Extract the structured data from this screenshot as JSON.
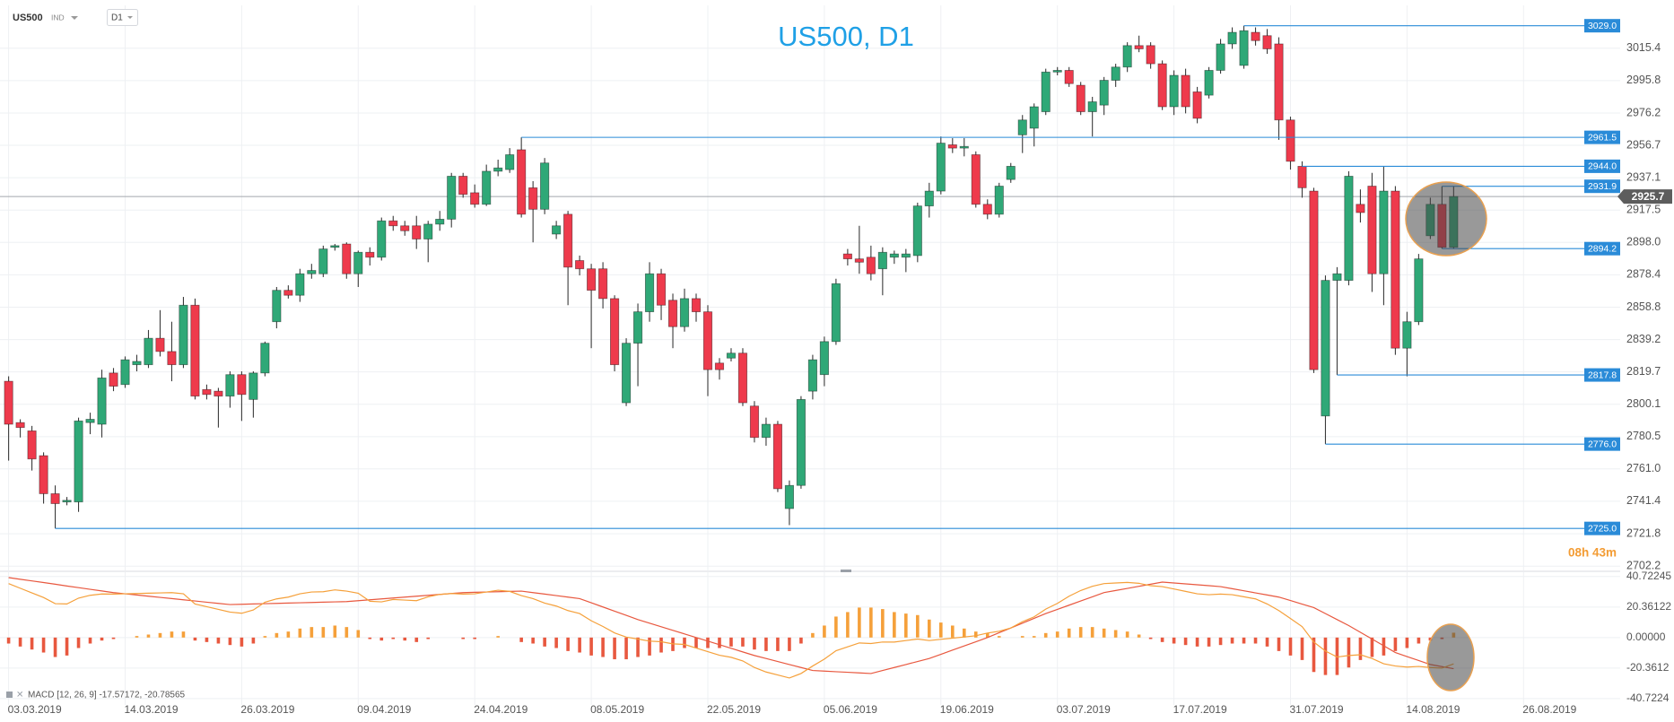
{
  "top_bar": {
    "symbol": "US500",
    "market": "IND",
    "timeframe": "D1"
  },
  "chart_data": [
    {
      "type": "candlestick",
      "title": "US500, D1",
      "categories": [
        "03.03.2019",
        null,
        null,
        null,
        null,
        null,
        null,
        null,
        null,
        null,
        "14.03.2019",
        null,
        null,
        null,
        null,
        null,
        null,
        null,
        null,
        null,
        "26.03.2019",
        null,
        null,
        null,
        null,
        null,
        null,
        null,
        null,
        null,
        "09.04.2019",
        null,
        null,
        null,
        null,
        null,
        null,
        null,
        null,
        null,
        "24.04.2019",
        null,
        null,
        null,
        null,
        null,
        null,
        null,
        null,
        null,
        "08.05.2019",
        null,
        null,
        null,
        null,
        null,
        null,
        null,
        null,
        null,
        "22.05.2019",
        null,
        null,
        null,
        null,
        null,
        null,
        null,
        null,
        null,
        "05.06.2019",
        null,
        null,
        null,
        null,
        null,
        null,
        null,
        null,
        null,
        "19.06.2019",
        null,
        null,
        null,
        null,
        null,
        null,
        null,
        null,
        null,
        "03.07.2019",
        null,
        null,
        null,
        null,
        null,
        null,
        null,
        null,
        null,
        "17.07.2019",
        null,
        null,
        null,
        null,
        null,
        null,
        null,
        null,
        null,
        "31.07.2019",
        null,
        null,
        null,
        null,
        null,
        null,
        null,
        null,
        null,
        "14.08.2019",
        null,
        null,
        null,
        null,
        null,
        null,
        null,
        null,
        null,
        "26.08.2019"
      ],
      "ohlc": [
        [
          2814,
          2817,
          2766,
          2788
        ],
        [
          2789,
          2791,
          2780,
          2786
        ],
        [
          2784,
          2787,
          2760,
          2767
        ],
        [
          2769,
          2771,
          2740,
          2746
        ],
        [
          2746,
          2751,
          2725,
          2740
        ],
        [
          2741,
          2744,
          2739,
          2742
        ],
        [
          2741,
          2792,
          2735,
          2790
        ],
        [
          2789,
          2795,
          2782,
          2791
        ],
        [
          2788,
          2821,
          2780,
          2816
        ],
        [
          2819,
          2822,
          2808,
          2811
        ],
        [
          2812,
          2829,
          2810,
          2827
        ],
        [
          2824,
          2830,
          2820,
          2826
        ],
        [
          2824,
          2845,
          2822,
          2840
        ],
        [
          2840,
          2857,
          2829,
          2832
        ],
        [
          2832,
          2850,
          2814,
          2824
        ],
        [
          2824,
          2865,
          2822,
          2860
        ],
        [
          2860,
          2864,
          2803,
          2805
        ],
        [
          2809,
          2812,
          2803,
          2806
        ],
        [
          2808,
          2810,
          2786,
          2805
        ],
        [
          2805,
          2820,
          2798,
          2818
        ],
        [
          2818,
          2820,
          2790,
          2806
        ],
        [
          2803,
          2820,
          2792,
          2819
        ],
        [
          2819,
          2838,
          2817,
          2837
        ],
        [
          2850,
          2871,
          2846,
          2869
        ],
        [
          2869,
          2872,
          2864,
          2866
        ],
        [
          2866,
          2882,
          2862,
          2879
        ],
        [
          2879,
          2885,
          2876,
          2881
        ],
        [
          2879,
          2896,
          2877,
          2894
        ],
        [
          2895,
          2897,
          2893,
          2896
        ],
        [
          2897,
          2898,
          2876,
          2879
        ],
        [
          2879,
          2893,
          2871,
          2892
        ],
        [
          2892,
          2895,
          2884,
          2889
        ],
        [
          2889,
          2913,
          2887,
          2911
        ],
        [
          2911,
          2914,
          2905,
          2908
        ],
        [
          2908,
          2911,
          2902,
          2905
        ],
        [
          2908,
          2914,
          2894,
          2900
        ],
        [
          2900,
          2911,
          2886,
          2909
        ],
        [
          2909,
          2917,
          2905,
          2912
        ],
        [
          2912,
          2940,
          2907,
          2938
        ],
        [
          2938,
          2940,
          2925,
          2927
        ],
        [
          2928,
          2933,
          2919,
          2921
        ],
        [
          2921,
          2945,
          2920,
          2941
        ],
        [
          2941,
          2948,
          2938,
          2943
        ],
        [
          2942,
          2955,
          2940,
          2951
        ],
        [
          2954,
          2961.5,
          2913,
          2915
        ],
        [
          2931,
          2935,
          2898,
          2918
        ],
        [
          2918,
          2949,
          2915,
          2946
        ],
        [
          2903,
          2911,
          2900,
          2908
        ],
        [
          2915,
          2917,
          2860,
          2883
        ],
        [
          2887,
          2890,
          2878,
          2882
        ],
        [
          2882,
          2885,
          2834,
          2869
        ],
        [
          2882,
          2886,
          2858,
          2864
        ],
        [
          2864,
          2866,
          2820,
          2824
        ],
        [
          2801,
          2840,
          2799,
          2837
        ],
        [
          2837,
          2861,
          2811,
          2856
        ],
        [
          2856,
          2886,
          2850,
          2879
        ],
        [
          2879,
          2882,
          2851,
          2860
        ],
        [
          2863,
          2867,
          2834,
          2847
        ],
        [
          2847,
          2870,
          2844,
          2864
        ],
        [
          2864,
          2867,
          2850,
          2856
        ],
        [
          2856,
          2860,
          2805,
          2821
        ],
        [
          2825,
          2828,
          2815,
          2821
        ],
        [
          2828,
          2834,
          2826,
          2831
        ],
        [
          2831,
          2834,
          2799,
          2801
        ],
        [
          2799,
          2802,
          2777,
          2780
        ],
        [
          2780,
          2792,
          2775,
          2788
        ],
        [
          2788,
          2790,
          2747,
          2749
        ],
        [
          2737,
          2754,
          2727,
          2751
        ],
        [
          2751,
          2805,
          2749,
          2803
        ],
        [
          2808,
          2830,
          2803,
          2827
        ],
        [
          2818,
          2841,
          2811,
          2838
        ],
        [
          2838,
          2876,
          2836,
          2873
        ],
        [
          2891,
          2894,
          2884,
          2888
        ],
        [
          2888,
          2908,
          2879,
          2886
        ],
        [
          2889,
          2896,
          2875,
          2879
        ],
        [
          2882,
          2895,
          2866,
          2892
        ],
        [
          2889,
          2893,
          2885,
          2891
        ],
        [
          2889,
          2894,
          2880,
          2891
        ],
        [
          2890,
          2922,
          2886,
          2920
        ],
        [
          2920,
          2934,
          2913,
          2929
        ],
        [
          2929,
          2962,
          2927,
          2958
        ],
        [
          2957,
          2961,
          2952,
          2955
        ],
        [
          2955,
          2961,
          2950,
          2956
        ],
        [
          2951,
          2953,
          2919,
          2921
        ],
        [
          2921,
          2924,
          2912,
          2915
        ],
        [
          2915,
          2934,
          2913,
          2932
        ],
        [
          2936,
          2946,
          2934,
          2944
        ],
        [
          2963,
          2975,
          2952,
          2972
        ],
        [
          2967,
          2982,
          2956,
          2980
        ],
        [
          2977,
          3003,
          2975,
          3001
        ],
        [
          3001,
          3004,
          2999,
          3002
        ],
        [
          3002,
          3004,
          2992,
          2994
        ],
        [
          2993,
          2995,
          2975,
          2977
        ],
        [
          2977,
          2986,
          2962,
          2983
        ],
        [
          2981,
          2998,
          2975,
          2996
        ],
        [
          2996,
          3006,
          2992,
          3004
        ],
        [
          3004,
          3019,
          3001,
          3017
        ],
        [
          3017,
          3023,
          3013,
          3015
        ],
        [
          3017,
          3019,
          3003,
          3006
        ],
        [
          3006,
          3008,
          2978,
          2980
        ],
        [
          2980,
          3002,
          2975,
          2999
        ],
        [
          2999,
          3003,
          2976,
          2980
        ],
        [
          2989,
          2992,
          2970,
          2973
        ],
        [
          2987,
          3004,
          2985,
          3002
        ],
        [
          3002,
          3021,
          3000,
          3018
        ],
        [
          3018,
          3028,
          3015,
          3025
        ],
        [
          3005,
          3029,
          3003,
          3026
        ],
        [
          3025,
          3028,
          3017,
          3020
        ],
        [
          3023,
          3027,
          3012,
          3015
        ],
        [
          3018,
          3022,
          2960,
          2972
        ],
        [
          2972,
          2974,
          2942,
          2947
        ],
        [
          2944,
          2947,
          2925,
          2931
        ],
        [
          2929,
          2931,
          2819,
          2821
        ],
        [
          2793,
          2878,
          2776,
          2875
        ],
        [
          2875,
          2883,
          2817.8,
          2879
        ],
        [
          2875,
          2941,
          2872,
          2938
        ],
        [
          2921,
          2930,
          2910,
          2916
        ],
        [
          2932,
          2940,
          2868,
          2879
        ],
        [
          2879,
          2944,
          2860,
          2929
        ],
        [
          2929,
          2932,
          2830,
          2834
        ],
        [
          2834,
          2856,
          2817,
          2850
        ],
        [
          2850,
          2891,
          2848,
          2888
        ],
        [
          2902,
          2925,
          2900,
          2921
        ],
        [
          2921,
          2931.9,
          2894.2,
          2895
        ],
        [
          2895,
          2932,
          2894,
          2925.7
        ],
        null,
        null,
        null,
        null,
        null,
        null
      ],
      "colors": {
        "up": "#2fa877",
        "down": "#ee3a4c",
        "level": "#2a8bd8",
        "last": "#5d5d5d",
        "countdown": "#f39c34"
      },
      "ylim": [
        2699.6,
        3041.3
      ],
      "yticks": [
        2702.2,
        2721.8,
        2741.4,
        {
          "value": 2761,
          "label": "2761.0"
        },
        2780.5,
        2800.1,
        2819.7,
        2839.2,
        2858.8,
        2878.4,
        {
          "value": 2898,
          "label": "2898.0"
        },
        2917.5,
        2937.1,
        2956.7,
        2976.2,
        2995.8,
        3015.4
      ],
      "grid": true,
      "levels": [
        {
          "value": 3029,
          "label": "3029.0"
        },
        2961.5,
        {
          "value": 2944,
          "label": "2944.0"
        },
        2931.9,
        2894.2,
        2817.8,
        {
          "value": 2776,
          "label": "2776.0"
        },
        {
          "value": 2725,
          "label": "2725.0"
        }
      ],
      "last_price": 2925.7,
      "countdown": "08h 43m"
    },
    {
      "type": "macd",
      "label": "MACD [12, 26, 9] -17.57172, -20.78565",
      "ylim": [
        -45,
        43.6
      ],
      "yticks": [
        40.72245,
        20.36122,
        {
          "value": 0,
          "label": "0.00000"
        },
        -20.3612,
        -40.7224
      ],
      "colors": {
        "up": "#f5a03a",
        "down": "#e8583f",
        "macd": "#f5a03a",
        "signal": "#e8583f"
      },
      "histogram": [
        -4,
        -6,
        -8,
        -10,
        -13,
        -12,
        -7,
        -4,
        -2,
        -1,
        0,
        1,
        2,
        3,
        4,
        4,
        -2,
        -3,
        -4,
        -5,
        -6,
        -4,
        1,
        3,
        4,
        6,
        7,
        7,
        8,
        7,
        5,
        -1,
        -2,
        -1,
        -2,
        -3,
        -1,
        0,
        0,
        -1,
        -1,
        0,
        1,
        0,
        -3,
        -4,
        -6,
        -7,
        -9,
        -10,
        -12,
        -13,
        -14.5,
        -14.5,
        -13,
        -12,
        -10,
        -9,
        -7,
        -7,
        -7,
        -7,
        -6,
        -6,
        -8,
        -9,
        -9,
        -9,
        -4,
        3,
        8,
        14,
        17,
        20,
        20,
        19,
        17,
        16,
        15,
        12,
        10,
        8,
        6,
        4,
        3,
        1,
        0,
        1,
        1,
        3,
        4,
        6,
        7,
        7,
        6,
        5,
        4,
        2,
        -1,
        -3,
        -4,
        -5,
        -6,
        -6,
        -5,
        -4,
        -4,
        -4,
        -6,
        -9,
        -12,
        -15,
        -23,
        -25,
        -25,
        -20,
        -15,
        -13,
        -12,
        -9,
        -7,
        -4,
        -2,
        -1,
        3.22,
        null,
        null,
        null,
        null,
        null,
        null
      ],
      "macd": [
        36,
        32.9,
        29.8,
        26.7,
        22.6,
        22.4,
        26.3,
        28.2,
        29.1,
        29,
        29.2,
        29.4,
        29.6,
        29.8,
        30,
        29.2,
        22.4,
        20.6,
        18.8,
        17,
        16.2,
        18.4,
        23.6,
        25.8,
        27,
        29.2,
        30.4,
        30.6,
        31.8,
        31,
        29.6,
        24.2,
        23.8,
        25.4,
        25,
        24.6,
        27.2,
        28.8,
        29.4,
        29,
        29.2,
        30.4,
        31.6,
        30.8,
        28,
        26,
        23,
        21,
        18,
        16,
        11.2,
        7.4,
        3.1,
        0.3,
        -1,
        -2.4,
        -2.8,
        -4.2,
        -4.6,
        -7,
        -9.4,
        -11.8,
        -13.2,
        -15.6,
        -20,
        -23,
        -25,
        -27,
        -24,
        -19,
        -14.4,
        -8.8,
        -6.2,
        -3.6,
        -4,
        -3,
        -3,
        -2,
        -1,
        -2,
        -1.2,
        -0.4,
        0.4,
        1.2,
        3,
        4.2,
        6.4,
        10.6,
        13.8,
        19,
        22.8,
        27.6,
        31.4,
        34.2,
        36,
        36.4,
        36.8,
        36.2,
        34.6,
        34,
        32.4,
        30.8,
        29.2,
        28.6,
        29,
        28.6,
        27.2,
        25.8,
        22.4,
        18,
        12.7,
        7.3,
        -3,
        -9,
        -13,
        -12,
        -11.5,
        -14,
        -17.5,
        -19,
        -19.7,
        -19.3,
        -20,
        -20.4,
        -17.57172,
        null,
        null,
        null,
        null,
        null,
        null
      ],
      "signal": [
        40,
        38.9,
        37.8,
        36.7,
        35.6,
        34.4,
        33.3,
        32.2,
        31.1,
        30,
        29.2,
        28.4,
        27.6,
        26.8,
        26,
        25.2,
        24.4,
        23.6,
        22.8,
        22,
        22.2,
        22.4,
        22.6,
        22.8,
        23,
        23.2,
        23.4,
        23.6,
        23.8,
        24,
        24.6,
        25.2,
        25.8,
        26.4,
        27,
        27.6,
        28.2,
        28.8,
        29.4,
        30,
        30.2,
        30.4,
        30.6,
        30.8,
        31,
        30,
        29,
        28,
        27,
        26,
        23.2,
        20.4,
        17.6,
        14.8,
        12,
        9.6,
        7.2,
        4.8,
        2.4,
        0,
        -2.4,
        -4.8,
        -7.2,
        -9.6,
        -12,
        -14,
        -16,
        -18,
        -20,
        -22,
        -22.4,
        -22.8,
        -23.2,
        -23.6,
        -24,
        -22,
        -20,
        -18,
        -16,
        -14,
        -11.2,
        -8.4,
        -5.6,
        -2.8,
        0,
        3.2,
        6.4,
        9.6,
        12.8,
        16,
        18.8,
        21.6,
        24.4,
        27.2,
        30,
        31.4,
        32.8,
        34.2,
        35.6,
        37,
        36.4,
        35.8,
        35.2,
        34.6,
        34,
        32.6,
        31.2,
        29.8,
        28.4,
        27,
        24.7,
        22.3,
        20,
        16,
        12,
        8,
        3.5,
        -1,
        -5.5,
        -10,
        -12.7,
        -15.3,
        -18,
        -19.4,
        -20.78565,
        null,
        null,
        null,
        null,
        null,
        null
      ]
    }
  ]
}
